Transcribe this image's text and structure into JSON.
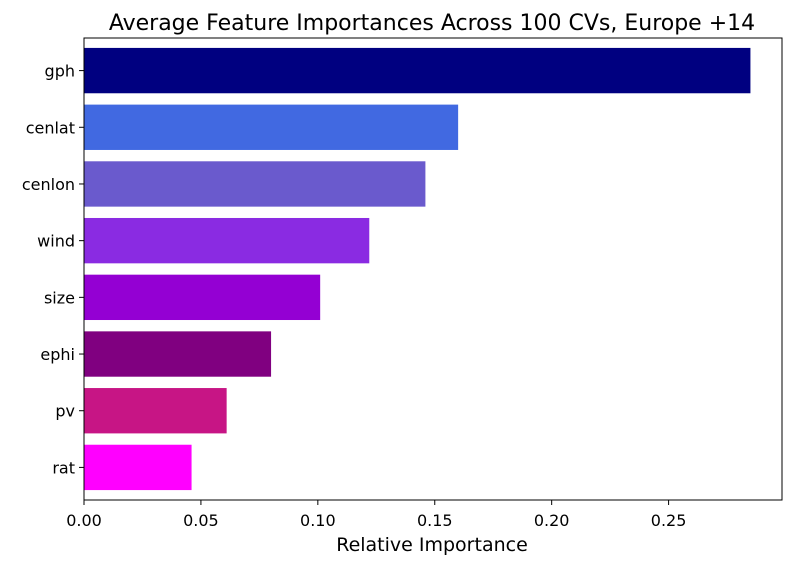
{
  "chart_data": {
    "type": "bar",
    "orientation": "horizontal",
    "title": "Average Feature Importances Across 100 CVs, Europe +14",
    "xlabel": "Relative Importance",
    "ylabel": "",
    "xlim": [
      0.0,
      0.2985
    ],
    "xticks": [
      "0.00",
      "0.05",
      "0.10",
      "0.15",
      "0.20",
      "0.25"
    ],
    "xtick_values": [
      0.0,
      0.05,
      0.1,
      0.15,
      0.2,
      0.25
    ],
    "categories": [
      "gph",
      "cenlat",
      "cenlon",
      "wind",
      "size",
      "ephi",
      "pv",
      "rat"
    ],
    "values": [
      0.285,
      0.16,
      0.146,
      0.122,
      0.101,
      0.08,
      0.061,
      0.046
    ],
    "colors": [
      "#000080",
      "#4169E1",
      "#6A5ACD",
      "#8A2BE2",
      "#9400D3",
      "#800080",
      "#C71585",
      "#FF00FF"
    ],
    "grid": false,
    "legend": "none"
  }
}
